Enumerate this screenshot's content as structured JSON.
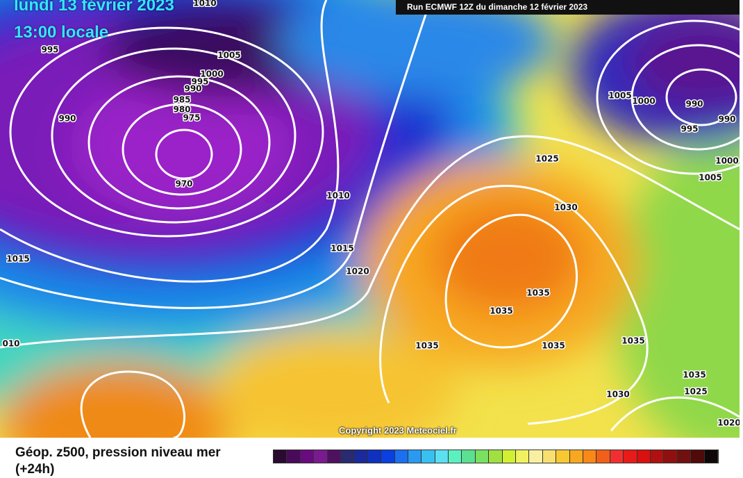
{
  "header": {
    "date": "lundi 13 février 2023",
    "time": "13:00 locale",
    "run": "Run ECMWF 12Z du dimanche 12 février 2023"
  },
  "isobar_labels": [
    "1010",
    "995",
    "1005",
    "1000",
    "995",
    "990",
    "985",
    "980",
    "975",
    "990",
    "970",
    "1010",
    "1015",
    "1020",
    "1015",
    "010",
    "1025",
    "1030",
    "1035",
    "1035",
    "1035",
    "1035",
    "1035",
    "1035",
    "1025",
    "1030",
    "1020",
    "1005",
    "1000",
    "990",
    "995",
    "990",
    "1000",
    "1005"
  ],
  "copyright": "Copyright 2023 Meteociel.fr",
  "caption": {
    "title": "Géop. z500, pression niveau mer",
    "lead": "(+24h)"
  }
}
